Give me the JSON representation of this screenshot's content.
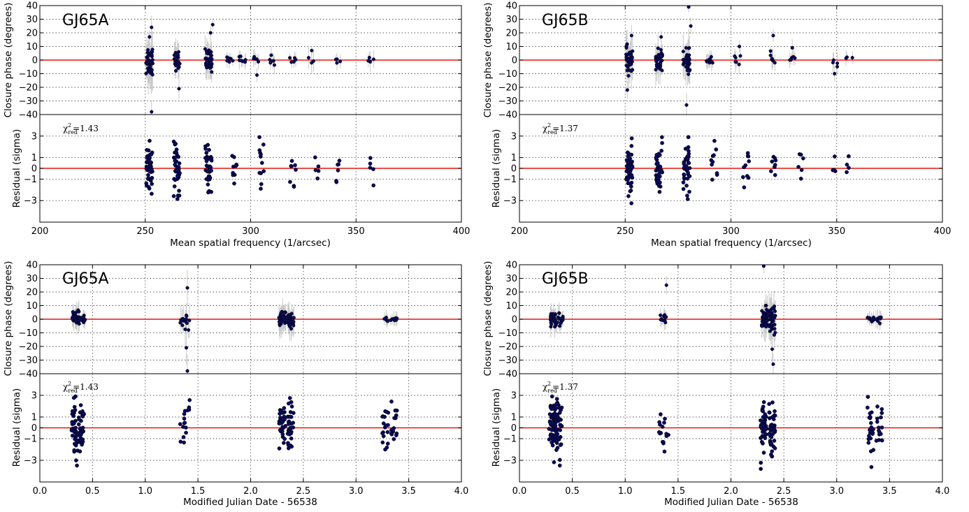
{
  "figure": {
    "colors": {
      "points": "#0a0a5c",
      "point_edge": "#000000",
      "errorbars": "#c8c8c8",
      "zero_line": "#e8140c",
      "grid": "#555555"
    },
    "panels": [
      {
        "star": "GJ65A",
        "chi_value": "=1.43",
        "xlabel": "Mean spatial frequency (1/arcsec)",
        "ylabel_top": "Closure phase (degrees)",
        "ylabel_bottom": "Residual (sigma)",
        "xticks": [
          "200",
          "250",
          "300",
          "350",
          "400"
        ],
        "yticks_top": [
          "40",
          "30",
          "20",
          "10",
          "0",
          "−10",
          "−20",
          "−30",
          "−40"
        ],
        "yticks_bottom": [
          "3",
          "1",
          "0",
          "−1",
          "−3"
        ]
      },
      {
        "star": "GJ65B",
        "chi_value": "=1.37",
        "xlabel": "Mean spatial frequency (1/arcsec)",
        "ylabel_top": "Closure phase (degrees)",
        "ylabel_bottom": "Residual (sigma)",
        "xticks": [
          "200",
          "250",
          "300",
          "350",
          "400"
        ],
        "yticks_top": [
          "40",
          "30",
          "20",
          "10",
          "0",
          "−10",
          "−20",
          "−30",
          "−40"
        ],
        "yticks_bottom": [
          "3",
          "1",
          "0",
          "−1",
          "−3"
        ]
      },
      {
        "star": "GJ65A",
        "chi_value": "=1.43",
        "xlabel": "Modified Julian Date - 56538",
        "ylabel_top": "Closure phase (degrees)",
        "ylabel_bottom": "Residual (sigma)",
        "xticks": [
          "0.0",
          "0.5",
          "1.0",
          "1.5",
          "2.0",
          "2.5",
          "3.0",
          "3.5",
          "4.0"
        ],
        "yticks_top": [
          "40",
          "30",
          "20",
          "10",
          "0",
          "−10",
          "−20",
          "−30",
          "−40"
        ],
        "yticks_bottom": [
          "3",
          "1",
          "0",
          "−1",
          "−3"
        ]
      },
      {
        "star": "GJ65B",
        "chi_value": "=1.37",
        "xlabel": "Modified Julian Date - 56538",
        "ylabel_top": "Closure phase (degrees)",
        "ylabel_bottom": "Residual (sigma)",
        "xticks": [
          "0.0",
          "0.5",
          "1.0",
          "1.5",
          "2.0",
          "2.5",
          "3.0",
          "3.5",
          "4.0"
        ],
        "yticks_top": [
          "40",
          "30",
          "20",
          "10",
          "0",
          "−10",
          "−20",
          "−30",
          "−40"
        ],
        "yticks_bottom": [
          "3",
          "1",
          "0",
          "−1",
          "−3"
        ]
      }
    ]
  },
  "chart_data": [
    {
      "type": "scatter",
      "star": "GJ65A",
      "x_label": "Mean spatial frequency (1/arcsec)",
      "xlim": [
        200,
        400
      ],
      "top": {
        "ylabel": "Closure phase (degrees)",
        "ylim": [
          -40,
          40
        ],
        "errorbars": true,
        "reference_line": 0,
        "clusters": [
          {
            "x": 252,
            "n": 42,
            "spread": 11,
            "outliers": [
              [
                253,
                -38
              ],
              [
                253,
                24
              ],
              [
                252,
                17
              ]
            ]
          },
          {
            "x": 265,
            "n": 28,
            "spread": 6,
            "outliers": [
              [
                266,
                -21
              ]
            ]
          },
          {
            "x": 280,
            "n": 38,
            "spread": 7,
            "outliers": [
              [
                282,
                26
              ],
              [
                281,
                20
              ]
            ]
          },
          {
            "x": 290,
            "n": 6,
            "spread": 2
          },
          {
            "x": 296,
            "n": 8,
            "spread": 3
          },
          {
            "x": 303,
            "n": 5,
            "spread": 3,
            "outliers": [
              [
                303,
                -11
              ]
            ]
          },
          {
            "x": 310,
            "n": 6,
            "spread": 3
          },
          {
            "x": 320,
            "n": 5,
            "spread": 2
          },
          {
            "x": 329,
            "n": 3,
            "spread": 4,
            "outliers": [
              [
                329,
                7
              ]
            ]
          },
          {
            "x": 341,
            "n": 4,
            "spread": 2
          },
          {
            "x": 357,
            "n": 4,
            "spread": 4
          }
        ]
      },
      "bottom": {
        "ylabel": "Residual (sigma)",
        "ylim": [
          -5,
          5
        ],
        "reference_line": 0,
        "annotation": "chi2_red = 1.43",
        "clusters": [
          {
            "x": 252,
            "n": 48,
            "spread": 1.2
          },
          {
            "x": 265,
            "n": 40,
            "spread": 1.3
          },
          {
            "x": 280,
            "n": 40,
            "spread": 1.1
          },
          {
            "x": 292,
            "n": 10,
            "spread": 1.0
          },
          {
            "x": 305,
            "n": 12,
            "spread": 1.0
          },
          {
            "x": 320,
            "n": 8,
            "spread": 0.8
          },
          {
            "x": 331,
            "n": 5,
            "spread": 0.8
          },
          {
            "x": 341,
            "n": 6,
            "spread": 0.8
          },
          {
            "x": 357,
            "n": 5,
            "spread": 0.8
          }
        ]
      }
    },
    {
      "type": "scatter",
      "star": "GJ65B",
      "x_label": "Mean spatial frequency (1/arcsec)",
      "xlim": [
        200,
        400
      ],
      "top": {
        "ylabel": "Closure phase (degrees)",
        "ylim": [
          -40,
          40
        ],
        "errorbars": true,
        "reference_line": 0,
        "clusters": [
          {
            "x": 252,
            "n": 40,
            "spread": 8,
            "outliers": [
              [
                251,
                -22
              ],
              [
                253,
                18
              ]
            ]
          },
          {
            "x": 266,
            "n": 34,
            "spread": 7,
            "outliers": [
              [
                267,
                17
              ]
            ]
          },
          {
            "x": 279,
            "n": 40,
            "spread": 9,
            "outliers": [
              [
                280,
                39
              ],
              [
                281,
                25
              ],
              [
                279,
                -33
              ]
            ]
          },
          {
            "x": 290,
            "n": 10,
            "spread": 3
          },
          {
            "x": 303,
            "n": 6,
            "spread": 4,
            "outliers": [
              [
                304,
                10
              ]
            ]
          },
          {
            "x": 320,
            "n": 8,
            "spread": 4,
            "outliers": [
              [
                320,
                18
              ]
            ]
          },
          {
            "x": 329,
            "n": 5,
            "spread": 3,
            "outliers": [
              [
                329,
                9
              ]
            ]
          },
          {
            "x": 349,
            "n": 4,
            "spread": 4,
            "outliers": [
              [
                349,
                -10
              ]
            ]
          },
          {
            "x": 356,
            "n": 3,
            "spread": 3
          }
        ]
      },
      "bottom": {
        "ylabel": "Residual (sigma)",
        "ylim": [
          -5,
          5
        ],
        "reference_line": 0,
        "annotation": "chi2_red = 1.37",
        "clusters": [
          {
            "x": 252,
            "n": 46,
            "spread": 1.2
          },
          {
            "x": 266,
            "n": 40,
            "spread": 1.3
          },
          {
            "x": 279,
            "n": 44,
            "spread": 1.3
          },
          {
            "x": 292,
            "n": 10,
            "spread": 1.0
          },
          {
            "x": 307,
            "n": 10,
            "spread": 1.1
          },
          {
            "x": 320,
            "n": 8,
            "spread": 0.9
          },
          {
            "x": 333,
            "n": 6,
            "spread": 0.8
          },
          {
            "x": 349,
            "n": 4,
            "spread": 0.8
          },
          {
            "x": 356,
            "n": 4,
            "spread": 0.6
          }
        ]
      }
    },
    {
      "type": "scatter",
      "star": "GJ65A",
      "x_label": "Modified Julian Date - 56538",
      "xlim": [
        0.0,
        4.0
      ],
      "top": {
        "ylabel": "Closure phase (degrees)",
        "ylim": [
          -40,
          40
        ],
        "errorbars": true,
        "reference_line": 0,
        "clusters": [
          {
            "x": 0.34,
            "n": 30,
            "spread": 5
          },
          {
            "x": 0.4,
            "n": 12,
            "spread": 3
          },
          {
            "x": 1.36,
            "n": 10,
            "spread": 6
          },
          {
            "x": 1.39,
            "n": 6,
            "spread": 8,
            "outliers": [
              [
                1.4,
                -38
              ],
              [
                1.39,
                -21
              ],
              [
                1.4,
                23
              ]
            ]
          },
          {
            "x": 2.3,
            "n": 30,
            "spread": 6
          },
          {
            "x": 2.38,
            "n": 30,
            "spread": 6
          },
          {
            "x": 3.3,
            "n": 6,
            "spread": 2
          },
          {
            "x": 3.36,
            "n": 6,
            "spread": 2
          }
        ]
      },
      "bottom": {
        "ylabel": "Residual (sigma)",
        "ylim": [
          -5,
          5
        ],
        "reference_line": 0,
        "annotation": "chi2_red = 1.43",
        "clusters": [
          {
            "x": 0.33,
            "n": 40,
            "spread": 1.4
          },
          {
            "x": 0.39,
            "n": 36,
            "spread": 1.2
          },
          {
            "x": 1.36,
            "n": 10,
            "spread": 1.4
          },
          {
            "x": 1.4,
            "n": 6,
            "spread": 1.5
          },
          {
            "x": 2.3,
            "n": 34,
            "spread": 1.1
          },
          {
            "x": 2.38,
            "n": 34,
            "spread": 1.3
          },
          {
            "x": 3.28,
            "n": 18,
            "spread": 1.3
          },
          {
            "x": 3.36,
            "n": 16,
            "spread": 1.2
          }
        ]
      }
    },
    {
      "type": "scatter",
      "star": "GJ65B",
      "x_label": "Modified Julian Date - 56538",
      "xlim": [
        0.0,
        4.0
      ],
      "top": {
        "ylabel": "Closure phase (degrees)",
        "ylim": [
          -40,
          40
        ],
        "errorbars": true,
        "reference_line": 0,
        "clusters": [
          {
            "x": 0.32,
            "n": 28,
            "spread": 5
          },
          {
            "x": 0.38,
            "n": 16,
            "spread": 5
          },
          {
            "x": 1.36,
            "n": 12,
            "spread": 3,
            "outliers": [
              [
                1.39,
                25
              ]
            ]
          },
          {
            "x": 2.32,
            "n": 36,
            "spread": 8,
            "outliers": [
              [
                2.31,
                39
              ]
            ]
          },
          {
            "x": 2.39,
            "n": 36,
            "spread": 8,
            "outliers": [
              [
                2.4,
                -33
              ],
              [
                2.39,
                -22
              ]
            ]
          },
          {
            "x": 3.32,
            "n": 10,
            "spread": 2
          },
          {
            "x": 3.4,
            "n": 8,
            "spread": 3
          }
        ]
      },
      "bottom": {
        "ylabel": "Residual (sigma)",
        "ylim": [
          -5,
          5
        ],
        "reference_line": 0,
        "annotation": "chi2_red = 1.37",
        "clusters": [
          {
            "x": 0.31,
            "n": 44,
            "spread": 1.4
          },
          {
            "x": 0.37,
            "n": 40,
            "spread": 1.4
          },
          {
            "x": 1.35,
            "n": 10,
            "spread": 1.1
          },
          {
            "x": 1.38,
            "n": 6,
            "spread": 0.9
          },
          {
            "x": 2.31,
            "n": 40,
            "spread": 1.2
          },
          {
            "x": 2.39,
            "n": 40,
            "spread": 1.3
          },
          {
            "x": 3.32,
            "n": 22,
            "spread": 1.3
          },
          {
            "x": 3.4,
            "n": 16,
            "spread": 1.1
          }
        ]
      }
    }
  ]
}
